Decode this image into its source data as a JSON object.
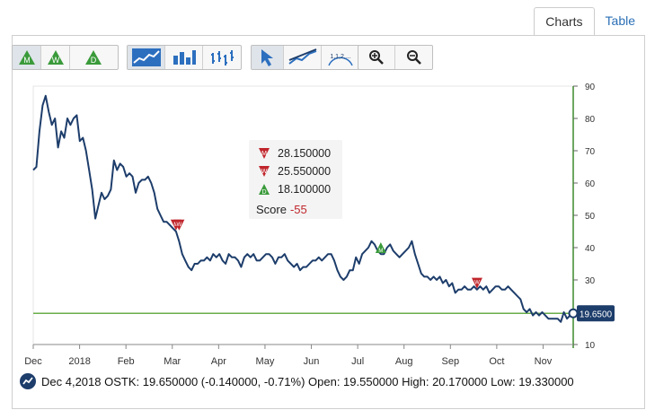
{
  "tabs": [
    {
      "label": "Charts",
      "active": true
    },
    {
      "label": "Table",
      "active": false
    }
  ],
  "toolbar": {
    "groups": [
      {
        "name": "signal-frequency",
        "buttons": [
          {
            "icon": "monthly-signal-icon",
            "letter": "M"
          },
          {
            "icon": "weekly-signal-icon",
            "letter": "W"
          },
          {
            "icon": "daily-signal-icon",
            "letter": "D"
          }
        ]
      },
      {
        "name": "chart-style",
        "buttons": [
          {
            "icon": "line-chart-icon"
          },
          {
            "icon": "bar-chart-icon"
          },
          {
            "icon": "ohlc-chart-icon"
          }
        ]
      },
      {
        "name": "tools",
        "buttons": [
          {
            "icon": "pointer-icon"
          },
          {
            "icon": "trendline-icon"
          },
          {
            "icon": "fibonacci-icon",
            "label": "1,1,2,..."
          }
        ]
      },
      {
        "name": "zoom",
        "buttons": [
          {
            "icon": "zoom-in-icon"
          },
          {
            "icon": "zoom-out-icon"
          }
        ]
      }
    ]
  },
  "tooltip": {
    "items": [
      {
        "type": "monthly-sell",
        "letter": "M",
        "value": "28.150000"
      },
      {
        "type": "weekly-sell",
        "letter": "W",
        "value": "25.550000"
      },
      {
        "type": "daily-buy",
        "letter": "D",
        "value": "18.100000"
      }
    ],
    "score_label": "Score",
    "score_value": "-55"
  },
  "footer": {
    "text": "Dec 4,2018 OSTK: 19.650000 (-0.140000, -0.71%) Open: 19.550000 High: 20.170000 Low: 19.330000"
  },
  "colors": {
    "line": "#1d3d6b",
    "last_price_line": "#6aae4a",
    "sell": "#c0262c",
    "buy": "#3a9a3a",
    "axis": "#3d8a2d"
  },
  "chart_data": {
    "type": "line",
    "symbol": "OSTK",
    "x_labels": [
      "Dec",
      "2018",
      "Feb",
      "Mar",
      "Apr",
      "May",
      "Jun",
      "Jul",
      "Aug",
      "Sep",
      "Oct",
      "Nov"
    ],
    "y_ticks": [
      10,
      20,
      30,
      40,
      50,
      60,
      70,
      80,
      90
    ],
    "ylim": [
      10,
      90
    ],
    "last_price_label": "19.6500",
    "last_price": 19.65,
    "series": [
      {
        "values": [
          64,
          65,
          76,
          84,
          87,
          82,
          78,
          80,
          71,
          76,
          74,
          80,
          78,
          80,
          81,
          73,
          74,
          70,
          64,
          58,
          49,
          53,
          57,
          55,
          56,
          58,
          67,
          64,
          66,
          65,
          62,
          63,
          62,
          57,
          60,
          61,
          61,
          62,
          60,
          57,
          52,
          50,
          48,
          48,
          47,
          46,
          45,
          42,
          38,
          36,
          34,
          33,
          35,
          35,
          36,
          36,
          37,
          36,
          38,
          37,
          38,
          36,
          35,
          38,
          37,
          37,
          36,
          34,
          37,
          38,
          37,
          38,
          36,
          36,
          37,
          38,
          38,
          37,
          35,
          37,
          37,
          38,
          36,
          35,
          34,
          35,
          33,
          34,
          34,
          35,
          36,
          36,
          37,
          36,
          37,
          38,
          38,
          36,
          33,
          31,
          30,
          31,
          33,
          33,
          37,
          35,
          38,
          39,
          40,
          42,
          41,
          39,
          38,
          38,
          40,
          41,
          39,
          38,
          37,
          38,
          39,
          40,
          42,
          38,
          35,
          32,
          31,
          31,
          30,
          31,
          30,
          31,
          29,
          30,
          28,
          29,
          26,
          27,
          27,
          28,
          27,
          27,
          28,
          27,
          28,
          27,
          28,
          26,
          27,
          28,
          28,
          27,
          27,
          28,
          27,
          26,
          25,
          24,
          21,
          20,
          21,
          19,
          20,
          19,
          20,
          19,
          18,
          18,
          18,
          18,
          17,
          20,
          18,
          19,
          19.65
        ]
      }
    ],
    "signals": [
      {
        "type": "monthly-sell",
        "letter": "M",
        "value": 47
      },
      {
        "type": "weekly-sell",
        "letter": "W",
        "value": 47
      },
      {
        "type": "monthly-buy",
        "letter": "M",
        "value": 40
      },
      {
        "type": "weekly-sell",
        "letter": "W",
        "value": 29
      }
    ]
  }
}
